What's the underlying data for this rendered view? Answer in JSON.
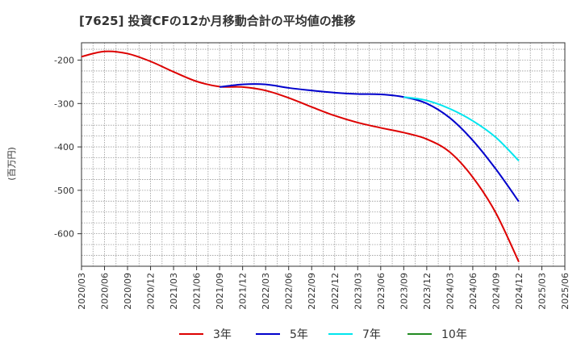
{
  "chart_data": {
    "type": "line",
    "title": "[7625]  投資CFの12か月移動合計の平均値の推移",
    "ylabel": "(百万円)",
    "xlabel": "",
    "ylim": [
      -675,
      -160
    ],
    "yticks": [
      -200,
      -300,
      -400,
      -500,
      -600
    ],
    "ytick_labels": [
      "-200",
      "-300",
      "-400",
      "-500",
      "-600"
    ],
    "xticks": [
      "2020/03",
      "2020/06",
      "2020/09",
      "2020/12",
      "2021/03",
      "2021/06",
      "2021/09",
      "2021/12",
      "2022/03",
      "2022/06",
      "2022/09",
      "2022/12",
      "2023/03",
      "2023/06",
      "2023/09",
      "2023/12",
      "2024/03",
      "2024/06",
      "2024/09",
      "2024/12",
      "2025/03",
      "2025/06"
    ],
    "grid": true,
    "legend_position": "bottom",
    "series": [
      {
        "name": "3年",
        "color": "#dd0000",
        "x": [
          "2020/03",
          "2020/06",
          "2020/09",
          "2020/12",
          "2021/03",
          "2021/06",
          "2021/09",
          "2021/12",
          "2022/03",
          "2022/06",
          "2022/09",
          "2022/12",
          "2023/03",
          "2023/06",
          "2023/09",
          "2023/12",
          "2024/03",
          "2024/06",
          "2024/09",
          "2024/12"
        ],
        "values": [
          -192,
          -180,
          -185,
          -203,
          -227,
          -249,
          -261,
          -262,
          -270,
          -287,
          -308,
          -328,
          -344,
          -356,
          -367,
          -382,
          -412,
          -470,
          -552,
          -665
        ]
      },
      {
        "name": "5年",
        "color": "#0000cc",
        "x": [
          "2021/09",
          "2021/12",
          "2022/03",
          "2022/06",
          "2022/09",
          "2022/12",
          "2023/03",
          "2023/06",
          "2023/09",
          "2023/12",
          "2024/03",
          "2024/06",
          "2024/09",
          "2024/12"
        ],
        "values": [
          -262,
          -256,
          -256,
          -264,
          -270,
          -275,
          -278,
          -279,
          -285,
          -300,
          -333,
          -385,
          -451,
          -526
        ]
      },
      {
        "name": "7年",
        "color": "#00e5ee",
        "x": [
          "2023/09",
          "2023/12",
          "2024/03",
          "2024/06",
          "2024/09",
          "2024/12"
        ],
        "values": [
          -285,
          -293,
          -312,
          -340,
          -378,
          -432
        ]
      },
      {
        "name": "10年",
        "color": "#228b22",
        "x": [],
        "values": []
      }
    ]
  }
}
